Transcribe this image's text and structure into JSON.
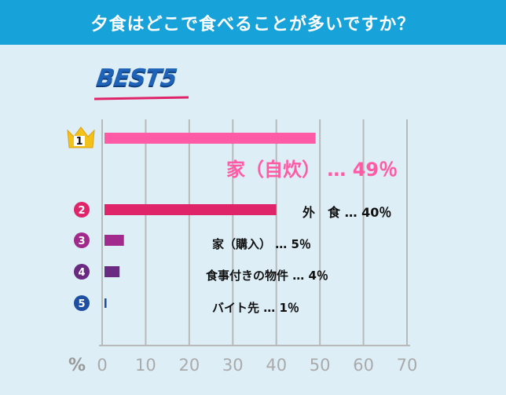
{
  "header": {
    "title": "夕食はどこで食べることが多いですか？"
  },
  "badge": {
    "text": "BEST5"
  },
  "colors": {
    "header_bg": "#17a3d9",
    "background": "#ddeef6",
    "rank1": "#ff5aa5",
    "rank2": "#e0246a",
    "rank3": "#a12a8c",
    "rank4": "#6a2a82",
    "rank5": "#1f4fa0",
    "crown": "#f2c21b"
  },
  "chart_data": {
    "type": "bar",
    "orientation": "horizontal",
    "categories": [
      "家（自炊）",
      "外　食",
      "家（購入）",
      "食事付きの物件",
      "バイト先"
    ],
    "values": [
      49,
      40,
      5,
      4,
      1
    ],
    "value_labels": [
      "49％",
      "40％",
      "5％",
      "4％",
      "1％"
    ],
    "ranks": [
      "1",
      "2",
      "3",
      "4",
      "5"
    ],
    "separator": "…",
    "xlim": [
      0,
      70
    ],
    "xticks": [
      0,
      10,
      20,
      30,
      40,
      50,
      60,
      70
    ],
    "x_unit": "%",
    "grid": true
  }
}
